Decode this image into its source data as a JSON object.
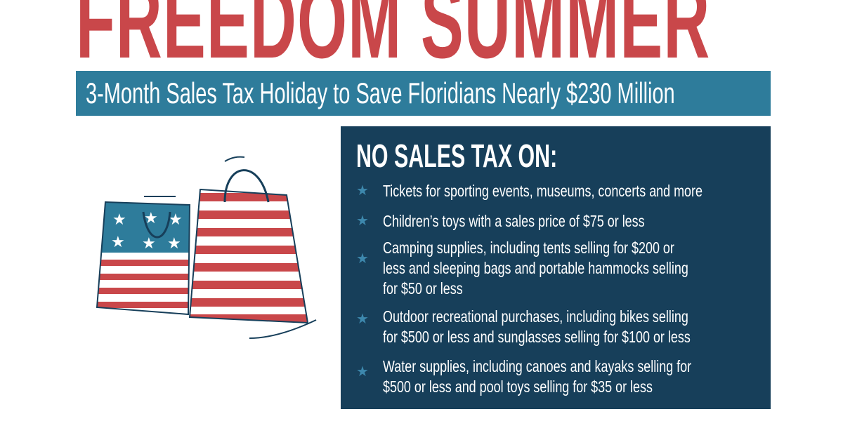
{
  "title": "FREEDOM SUMMER",
  "subtitle": "3-Month Sales Tax Holiday to Save Floridians Nearly $230 Million",
  "panel": {
    "heading": "NO SALES TAX ON:",
    "bullet_icon": "star-icon",
    "items": [
      {
        "text": "Tickets for sporting events, museums, concerts and more"
      },
      {
        "text": "Children’s toys with a sales price of $75 or less"
      },
      {
        "text": "Camping supplies, including tents selling for $200 or\nless and sleeping bags and portable hammocks selling\nfor $50 or less"
      },
      {
        "text": "Outdoor recreational purchases, including bikes selling\nfor $500 or less and sunglasses selling for $100 or less"
      },
      {
        "text": "Water supplies, including canoes and kayaks selling for\n$500 or less and pool toys selling for $35 or less"
      }
    ]
  },
  "colors": {
    "red": "#c9474a",
    "banner_blue": "#2e7c9b",
    "navy": "#173f5a",
    "star_blue": "#3d88ad"
  }
}
